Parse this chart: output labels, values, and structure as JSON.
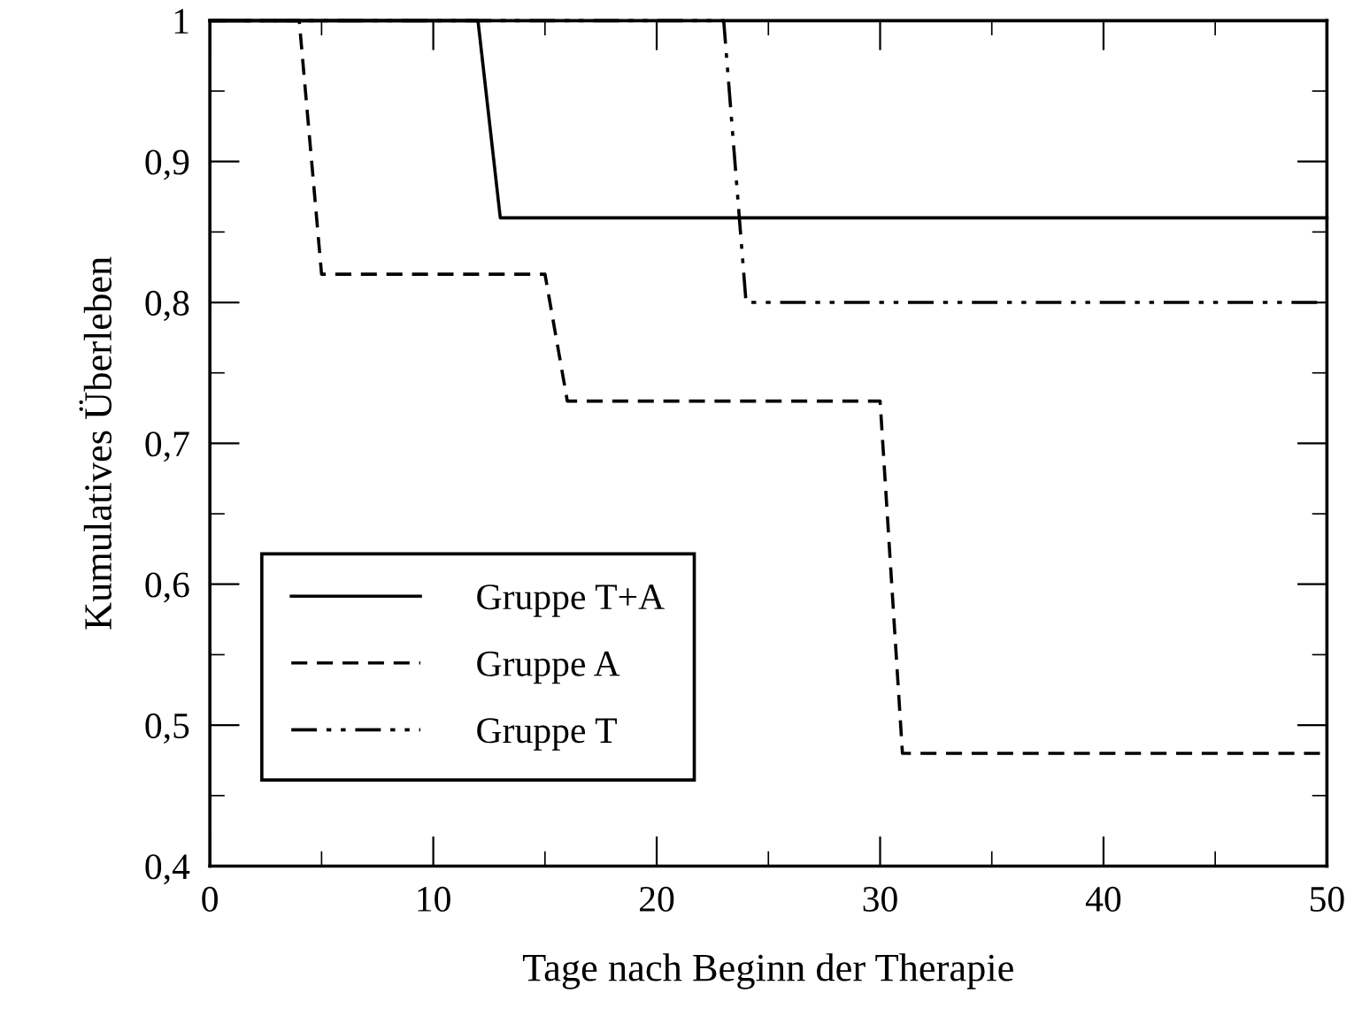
{
  "chart_data": {
    "type": "line",
    "xlabel": "Tage nach Beginn der Therapie",
    "ylabel": "Kumulatives Überleben",
    "xlim": [
      0,
      50
    ],
    "ylim": [
      0.4,
      1
    ],
    "xticks": [
      0,
      10,
      20,
      30,
      40,
      50
    ],
    "yticks": [
      {
        "value": 0.4,
        "label": "0,4"
      },
      {
        "value": 0.5,
        "label": "0,5"
      },
      {
        "value": 0.6,
        "label": "0,6"
      },
      {
        "value": 0.7,
        "label": "0,7"
      },
      {
        "value": 0.8,
        "label": "0,8"
      },
      {
        "value": 0.9,
        "label": "0,9"
      },
      {
        "value": 1,
        "label": "1"
      }
    ],
    "grid": false,
    "legend": "bottom left",
    "marker": "none",
    "series": [
      {
        "name": "Gruppe T+A",
        "color": "#000000",
        "line_style": "solid",
        "x": [
          0,
          12,
          13,
          50
        ],
        "values": [
          1,
          1,
          0.86,
          0.86
        ]
      },
      {
        "name": "Gruppe A",
        "color": "#000000",
        "line_style": "dashed",
        "x": [
          0,
          4,
          5,
          15,
          16,
          30,
          31,
          50
        ],
        "values": [
          1,
          1,
          0.82,
          0.82,
          0.73,
          0.73,
          0.48,
          0.48
        ]
      },
      {
        "name": "Gruppe T",
        "color": "#000000",
        "line_style": "dashdotdot",
        "x": [
          0,
          23,
          24,
          50
        ],
        "values": [
          1,
          1,
          0.8,
          0.8
        ]
      }
    ]
  }
}
